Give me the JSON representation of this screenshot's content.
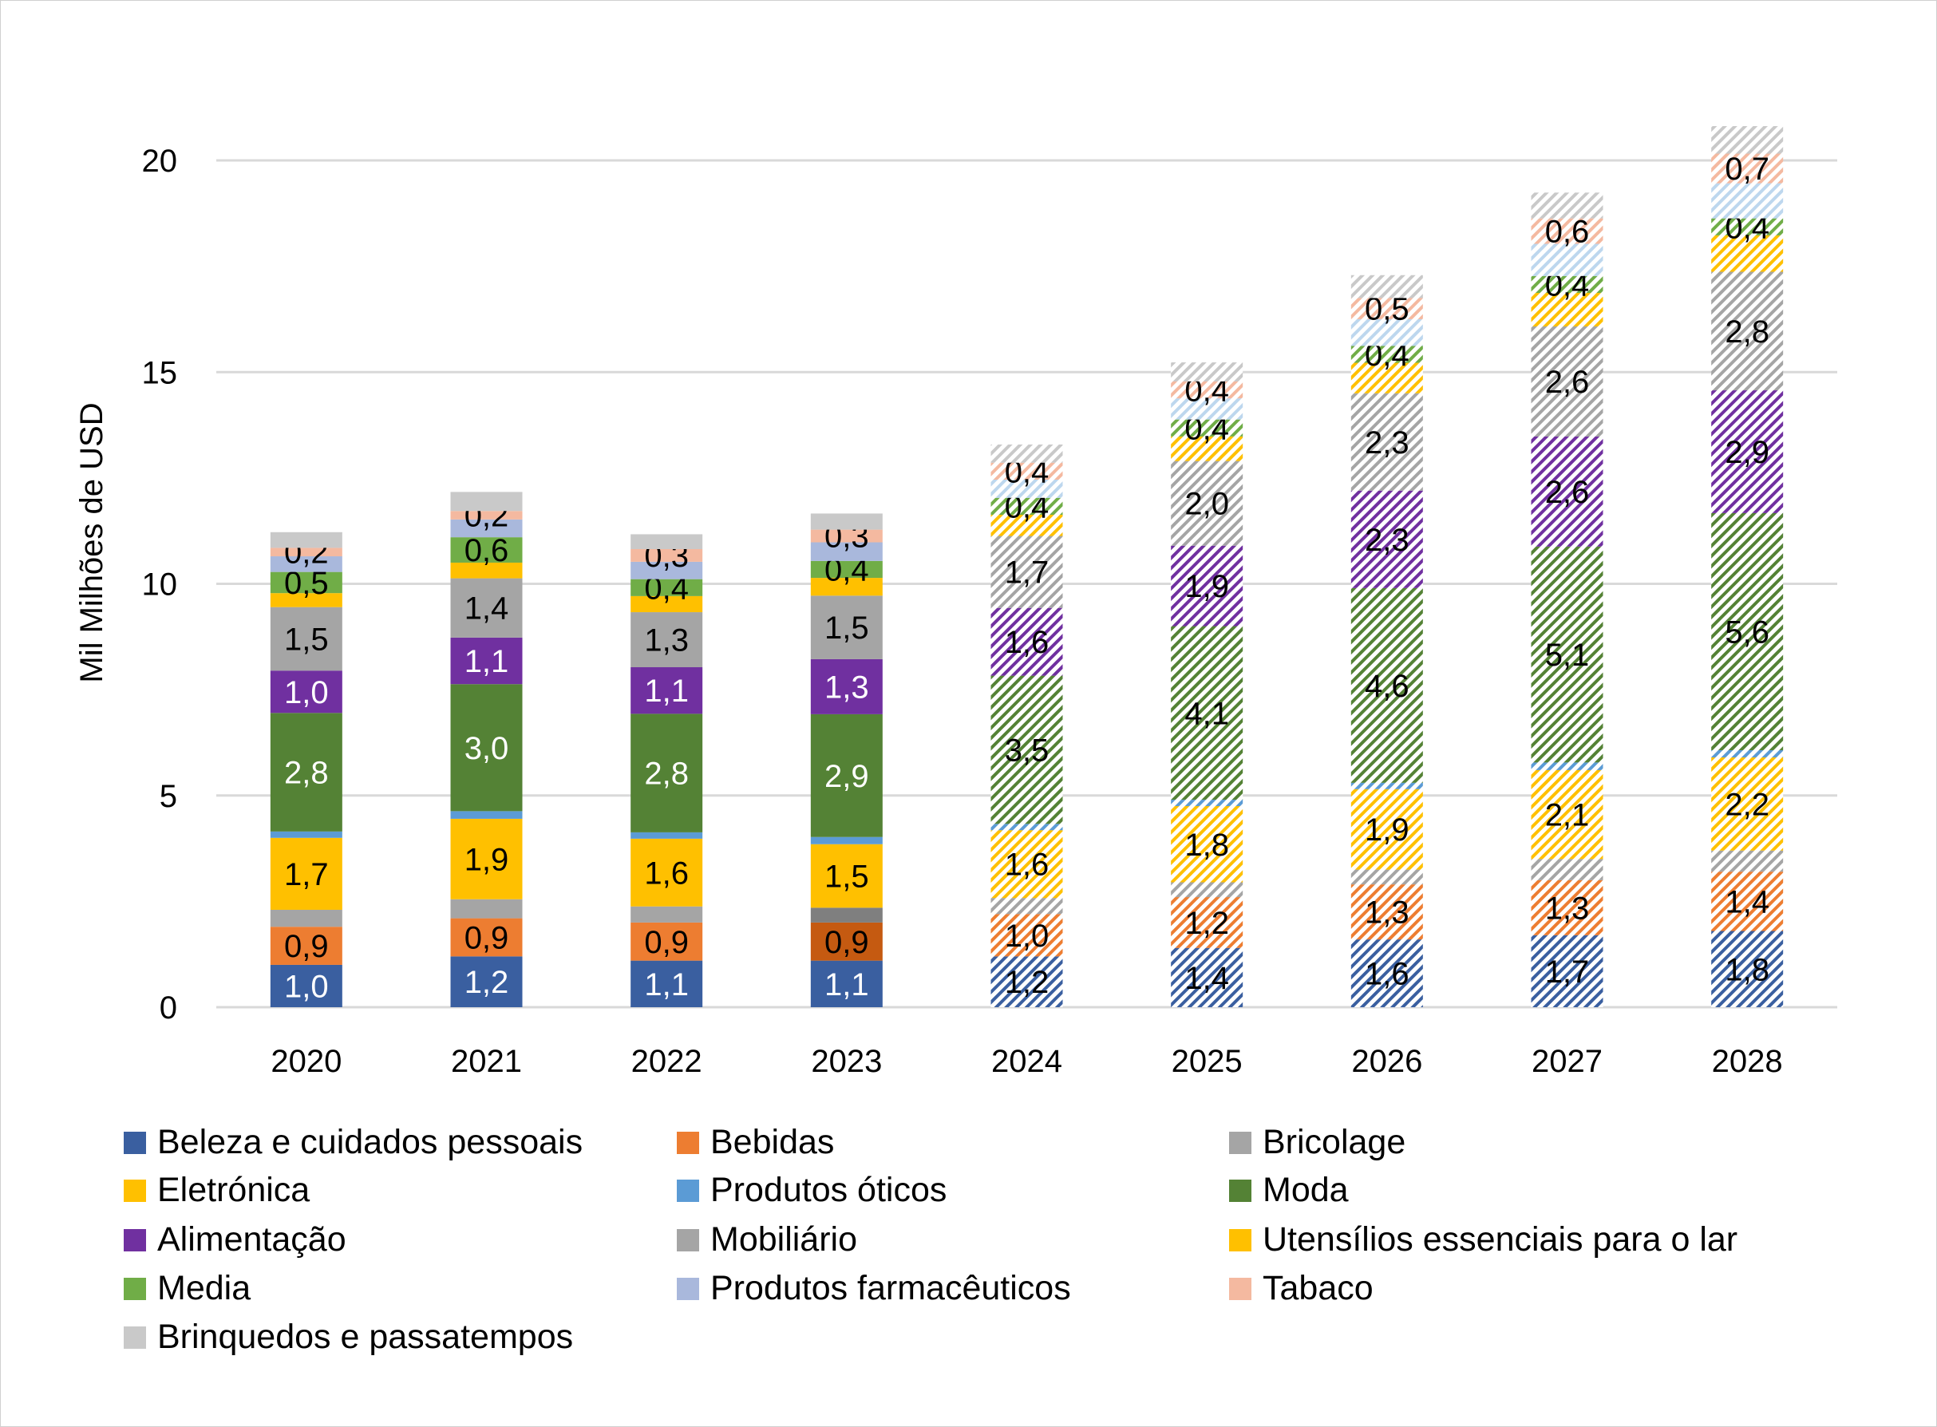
{
  "chart_data": {
    "type": "bar",
    "stacked": true,
    "ylabel": "Mil Milhões de USD",
    "ylim": [
      0,
      21
    ],
    "yticks": [
      0,
      5,
      10,
      15,
      20
    ],
    "grid": true,
    "legend_position": "bottom",
    "categories": [
      "2020",
      "2021",
      "2022",
      "2023",
      "2024",
      "2025",
      "2026",
      "2027",
      "2028"
    ],
    "forecast_categories": [
      "2024",
      "2025",
      "2026",
      "2027",
      "2028"
    ],
    "series": [
      {
        "name": "Beleza e cuidados pessoais",
        "color": "#3A5FA0",
        "values": [
          1.0,
          1.2,
          1.1,
          1.1,
          1.2,
          1.4,
          1.6,
          1.7,
          1.8
        ],
        "labels": [
          "1,0",
          "1,2",
          "1,1",
          "1,1",
          "1,2",
          "1,4",
          "1,6",
          "1,7",
          "1,8"
        ]
      },
      {
        "name": "Bebidas",
        "color": "#ED7D31",
        "values": [
          0.9,
          0.9,
          0.9,
          0.9,
          1.0,
          1.2,
          1.3,
          1.3,
          1.4
        ],
        "labels": [
          "0,9",
          "0,9",
          "0,9",
          "0,9",
          "1,0",
          "1,2",
          "1,3",
          "1,3",
          "1,4"
        ]
      },
      {
        "name": "Bricolage",
        "color": "#A5A5A5",
        "values": [
          0.4,
          0.45,
          0.38,
          0.35,
          0.38,
          0.35,
          0.35,
          0.5,
          0.5
        ],
        "labels": [
          null,
          null,
          null,
          null,
          null,
          null,
          null,
          null,
          null
        ]
      },
      {
        "name": "Eletrónica",
        "color": "#FFC000",
        "values": [
          1.7,
          1.9,
          1.6,
          1.5,
          1.6,
          1.8,
          1.9,
          2.1,
          2.2
        ],
        "labels": [
          "1,7",
          "1,9",
          "1,6",
          "1,5",
          "1,6",
          "1,8",
          "1,9",
          "2,1",
          "2,2"
        ]
      },
      {
        "name": "Produtos óticos",
        "color": "#5B9BD5",
        "values": [
          0.15,
          0.18,
          0.15,
          0.17,
          0.15,
          0.15,
          0.15,
          0.18,
          0.17
        ],
        "labels": [
          null,
          null,
          null,
          null,
          null,
          null,
          null,
          null,
          null
        ]
      },
      {
        "name": "Moda",
        "color": "#548235",
        "values": [
          2.8,
          3.0,
          2.8,
          2.9,
          3.5,
          4.1,
          4.6,
          5.1,
          5.6
        ],
        "labels": [
          "2,8",
          "3,0",
          "2,8",
          "2,9",
          "3,5",
          "4,1",
          "4,6",
          "5,1",
          "5,6"
        ]
      },
      {
        "name": "Alimentação",
        "color": "#7030A0",
        "values": [
          1.0,
          1.1,
          1.1,
          1.3,
          1.6,
          1.9,
          2.3,
          2.6,
          2.9
        ],
        "labels": [
          "1,0",
          "1,1",
          "1,1",
          "1,3",
          "1,6",
          "1,9",
          "2,3",
          "2,6",
          "2,9"
        ]
      },
      {
        "name": "Mobiliário",
        "color": "#A5A5A5",
        "values": [
          1.5,
          1.4,
          1.3,
          1.5,
          1.7,
          2.0,
          2.3,
          2.6,
          2.8
        ],
        "labels": [
          "1,5",
          "1,4",
          "1,3",
          "1,5",
          "1,7",
          "2,0",
          "2,3",
          "2,6",
          "2,8"
        ]
      },
      {
        "name": "Utensílios essenciais para o lar",
        "color": "#FFC000",
        "values": [
          0.33,
          0.37,
          0.38,
          0.42,
          0.5,
          0.58,
          0.72,
          0.79,
          0.86
        ],
        "labels": [
          null,
          null,
          null,
          null,
          null,
          null,
          null,
          null,
          null
        ]
      },
      {
        "name": "Media",
        "color": "#70AD47",
        "values": [
          0.5,
          0.6,
          0.4,
          0.4,
          0.4,
          0.4,
          0.4,
          0.4,
          0.4
        ],
        "labels": [
          "0,5",
          "0,6",
          "0,4",
          "0,4",
          "0,4",
          "0,4",
          "0,4",
          "0,4",
          "0,4"
        ]
      },
      {
        "name": "Produtos farmacêuticos",
        "color": "#A9B8DC",
        "values": [
          0.37,
          0.42,
          0.41,
          0.44,
          0.43,
          0.5,
          0.63,
          0.76,
          0.83
        ],
        "labels": [
          null,
          null,
          null,
          null,
          null,
          null,
          null,
          null,
          null
        ]
      },
      {
        "name": "Tabaco",
        "color": "#F4B9A0",
        "values": [
          0.2,
          0.2,
          0.3,
          0.3,
          0.4,
          0.4,
          0.5,
          0.6,
          0.7
        ],
        "labels": [
          "0,2",
          "0,2",
          "0,3",
          "0,3",
          "0,4",
          "0,4",
          "0,5",
          "0,6",
          "0,7"
        ]
      },
      {
        "name": "Brinquedos e passatempos",
        "color": "#C9C9C9",
        "values": [
          0.37,
          0.45,
          0.35,
          0.38,
          0.43,
          0.45,
          0.54,
          0.61,
          0.65
        ],
        "labels": [
          null,
          null,
          null,
          null,
          null,
          null,
          null,
          null,
          null
        ]
      }
    ],
    "white_label_series": [
      "Beleza e cuidados pessoais",
      "Moda",
      "Alimentação"
    ],
    "forecast_colors": {
      "Produtos farmacêuticos": "#BDD7EE"
    },
    "point_color_overrides": [
      {
        "series": "Bebidas",
        "category": "2023",
        "color": "#C55A11"
      },
      {
        "series": "Bricolage",
        "category": "2023",
        "color": "#7F7F7F"
      }
    ]
  }
}
